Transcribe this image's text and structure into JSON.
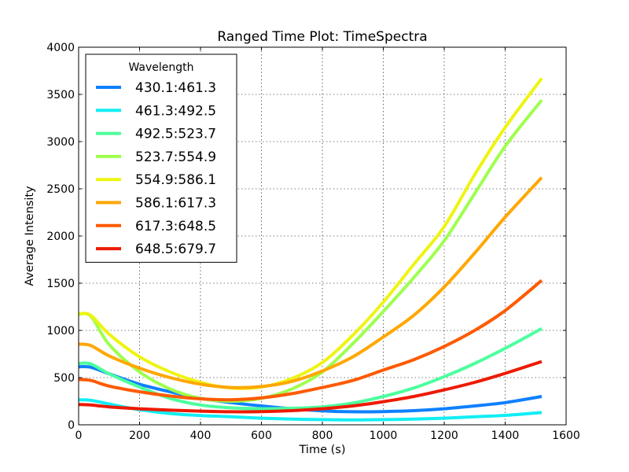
{
  "chart_data": {
    "type": "line",
    "title": "Ranged Time Plot: TimeSpectra",
    "xlabel": "Time (s)",
    "ylabel": "Average Intensity",
    "xlim": [
      0,
      1600
    ],
    "ylim": [
      0,
      4000
    ],
    "xticks": [
      0,
      200,
      400,
      600,
      800,
      1000,
      1200,
      1400,
      1600
    ],
    "yticks": [
      0,
      500,
      1000,
      1500,
      2000,
      2500,
      3000,
      3500,
      4000
    ],
    "grid": true,
    "legend_title": "Wavelength",
    "legend_position": "top-left",
    "series": [
      {
        "name": "430.1:461.3",
        "color": "#0f80ff",
        "x": [
          0,
          40,
          100,
          200,
          300,
          400,
          500,
          600,
          700,
          800,
          900,
          1000,
          1100,
          1200,
          1300,
          1400,
          1520
        ],
        "y": [
          615,
          610,
          540,
          430,
          350,
          280,
          235,
          200,
          170,
          148,
          138,
          140,
          150,
          170,
          200,
          235,
          300
        ]
      },
      {
        "name": "461.3:492.5",
        "color": "#11eef4",
        "x": [
          0,
          40,
          100,
          200,
          300,
          400,
          500,
          600,
          700,
          800,
          900,
          1000,
          1100,
          1200,
          1300,
          1400,
          1520
        ],
        "y": [
          265,
          260,
          220,
          160,
          120,
          98,
          85,
          70,
          60,
          55,
          52,
          55,
          60,
          70,
          85,
          100,
          130
        ]
      },
      {
        "name": "492.5:523.7",
        "color": "#4dff9e",
        "x": [
          0,
          40,
          100,
          200,
          300,
          400,
          500,
          600,
          700,
          800,
          900,
          1000,
          1100,
          1200,
          1300,
          1400,
          1520
        ],
        "y": [
          650,
          645,
          540,
          400,
          280,
          210,
          180,
          170,
          175,
          190,
          230,
          300,
          390,
          510,
          650,
          810,
          1020
        ]
      },
      {
        "name": "523.7:554.9",
        "color": "#9eff4d",
        "x": [
          0,
          40,
          100,
          200,
          300,
          400,
          500,
          600,
          700,
          800,
          900,
          1000,
          1100,
          1200,
          1300,
          1400,
          1520
        ],
        "y": [
          1170,
          1150,
          850,
          560,
          380,
          280,
          250,
          280,
          380,
          560,
          860,
          1200,
          1560,
          1950,
          2450,
          2950,
          3440
        ]
      },
      {
        "name": "554.9:586.1",
        "color": "#eef411",
        "x": [
          0,
          40,
          100,
          200,
          300,
          400,
          500,
          600,
          700,
          800,
          900,
          1000,
          1100,
          1200,
          1300,
          1400,
          1520
        ],
        "y": [
          1175,
          1160,
          960,
          720,
          560,
          450,
          390,
          400,
          490,
          660,
          950,
          1300,
          1700,
          2100,
          2650,
          3150,
          3670
        ]
      },
      {
        "name": "586.1:617.3",
        "color": "#ffa700",
        "x": [
          0,
          40,
          100,
          200,
          300,
          400,
          500,
          600,
          700,
          800,
          900,
          1000,
          1100,
          1200,
          1300,
          1400,
          1520
        ],
        "y": [
          855,
          840,
          730,
          600,
          500,
          430,
          395,
          405,
          460,
          570,
          720,
          930,
          1160,
          1460,
          1820,
          2200,
          2620
        ]
      },
      {
        "name": "617.3:648.5",
        "color": "#ff5a00",
        "x": [
          0,
          40,
          100,
          200,
          300,
          400,
          500,
          600,
          700,
          800,
          900,
          1000,
          1100,
          1200,
          1300,
          1400,
          1520
        ],
        "y": [
          480,
          470,
          410,
          350,
          305,
          275,
          265,
          285,
          330,
          395,
          470,
          580,
          690,
          830,
          1000,
          1210,
          1530
        ]
      },
      {
        "name": "648.5:679.7",
        "color": "#ed1a00",
        "x": [
          0,
          40,
          100,
          200,
          300,
          400,
          500,
          600,
          700,
          800,
          900,
          1000,
          1100,
          1200,
          1300,
          1400,
          1520
        ],
        "y": [
          215,
          210,
          190,
          170,
          155,
          145,
          138,
          140,
          150,
          170,
          200,
          245,
          300,
          370,
          450,
          545,
          670
        ]
      }
    ]
  }
}
